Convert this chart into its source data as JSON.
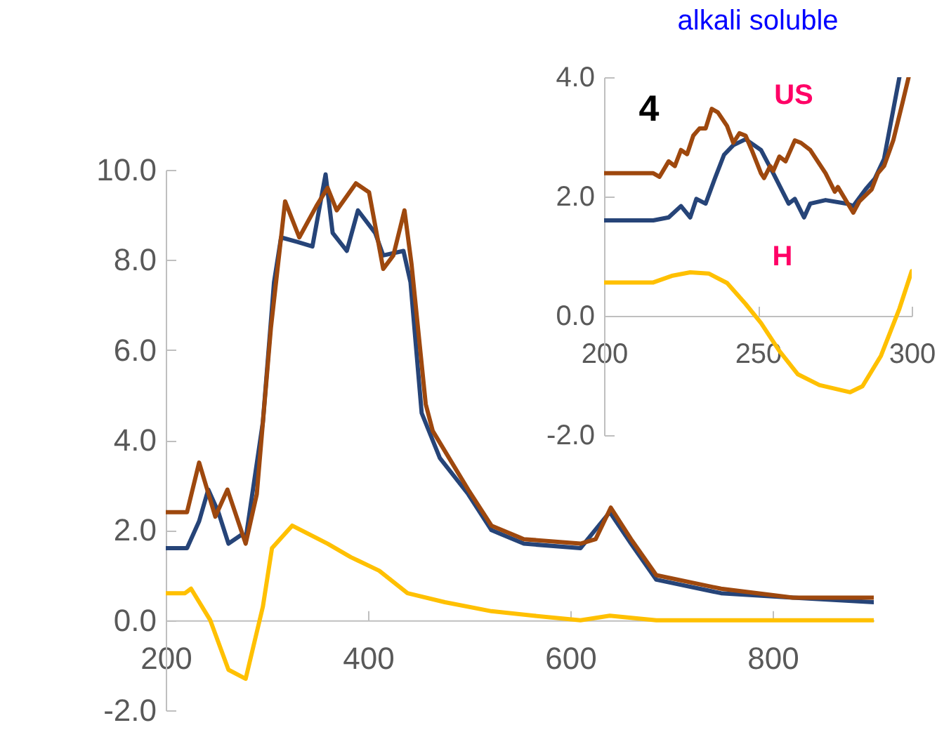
{
  "chart_data": [
    {
      "type": "line",
      "xlim": [
        200,
        900
      ],
      "xticks": [
        200,
        400,
        600,
        800
      ],
      "ylim": [
        -2,
        10
      ],
      "yticks": [
        {
          "value": -2,
          "label": "-2.0"
        },
        {
          "value": 0,
          "label": "0.0"
        },
        {
          "value": 2,
          "label": "2.0"
        },
        {
          "value": 4,
          "label": "4.0"
        },
        {
          "value": 6,
          "label": "6.0"
        },
        {
          "value": 8,
          "label": "8.0"
        },
        {
          "value": 10,
          "label": "10.0"
        }
      ],
      "series": [
        {
          "color": "#264478",
          "x": [
            200,
            221,
            233,
            242,
            252,
            262,
            275,
            279,
            296,
            307,
            314,
            330,
            345,
            358,
            365,
            379,
            390,
            407,
            415,
            435,
            442,
            453,
            471,
            499,
            522,
            554,
            610,
            639,
            660,
            685,
            749,
            820,
            900
          ],
          "values": [
            1.6,
            1.6,
            2.2,
            2.9,
            2.4,
            1.7,
            1.9,
            1.8,
            4.4,
            7.5,
            8.5,
            8.4,
            8.3,
            9.9,
            8.6,
            8.2,
            9.1,
            8.6,
            8.1,
            8.2,
            7.5,
            4.6,
            3.6,
            2.8,
            2.0,
            1.7,
            1.6,
            2.4,
            1.7,
            0.9,
            0.6,
            0.5,
            0.4
          ]
        },
        {
          "color": "#9e480e",
          "x": [
            200,
            221,
            233,
            249,
            261,
            279,
            290,
            304,
            318,
            332,
            349,
            360,
            369,
            388,
            401,
            415,
            425,
            436,
            443,
            457,
            464,
            499,
            522,
            554,
            610,
            625,
            640,
            660,
            685,
            749,
            820,
            900
          ],
          "values": [
            2.4,
            2.4,
            3.5,
            2.3,
            2.9,
            1.7,
            2.8,
            6.5,
            9.3,
            8.5,
            9.2,
            9.6,
            9.1,
            9.7,
            9.5,
            7.8,
            8.1,
            9.1,
            7.9,
            4.8,
            4.2,
            2.9,
            2.1,
            1.8,
            1.7,
            1.8,
            2.5,
            1.8,
            1.0,
            0.7,
            0.5,
            0.5
          ]
        },
        {
          "color": "#ffc000",
          "x": [
            200,
            219,
            225,
            244,
            262,
            279,
            296,
            305,
            325,
            360,
            383,
            411,
            439,
            476,
            522,
            564,
            610,
            639,
            685,
            900
          ],
          "values": [
            0.6,
            0.6,
            0.7,
            0.0,
            -1.1,
            -1.3,
            0.3,
            1.6,
            2.1,
            1.7,
            1.4,
            1.1,
            0.6,
            0.4,
            0.2,
            0.1,
            0.0,
            0.1,
            0.0,
            0.0
          ]
        }
      ]
    },
    {
      "type": "line",
      "title": "alkali soluble",
      "annotations": [
        "4",
        "US",
        "H"
      ],
      "xlim": [
        200,
        300
      ],
      "xticks": [
        200,
        250,
        300
      ],
      "ylim": [
        -2,
        4
      ],
      "yticks": [
        {
          "value": -2,
          "label": "-2.0"
        },
        {
          "value": 0,
          "label": "0.0"
        },
        {
          "value": 2,
          "label": "2.0"
        },
        {
          "value": 4,
          "label": "4.0"
        }
      ],
      "series": [
        {
          "color": "#264478",
          "x": [
            200,
            216,
            221,
            225,
            228,
            230,
            233,
            236,
            239,
            242,
            246,
            251,
            255,
            260,
            262,
            265,
            267,
            272,
            279,
            281,
            285,
            288,
            291,
            293,
            296
          ],
          "values": [
            1.6,
            1.6,
            1.65,
            1.84,
            1.65,
            1.96,
            1.88,
            2.3,
            2.7,
            2.86,
            2.96,
            2.78,
            2.39,
            1.88,
            1.96,
            1.65,
            1.88,
            1.94,
            1.88,
            1.84,
            2.12,
            2.3,
            2.63,
            3.18,
            4.0
          ]
        },
        {
          "color": "#9e480e",
          "x": [
            200,
            216,
            218,
            221,
            223,
            225,
            227,
            229,
            231,
            233,
            235,
            237,
            240,
            242,
            244,
            246,
            248,
            251,
            252,
            254,
            255,
            257,
            259,
            262,
            264,
            267,
            272,
            275,
            276,
            281,
            283,
            287,
            289,
            291,
            294,
            297,
            299
          ],
          "values": [
            2.39,
            2.39,
            2.33,
            2.59,
            2.51,
            2.78,
            2.71,
            3.02,
            3.14,
            3.14,
            3.47,
            3.41,
            3.18,
            2.9,
            3.06,
            3.02,
            2.78,
            2.39,
            2.31,
            2.51,
            2.43,
            2.67,
            2.59,
            2.94,
            2.9,
            2.78,
            2.39,
            2.08,
            2.16,
            1.73,
            1.92,
            2.12,
            2.39,
            2.51,
            2.94,
            3.57,
            4.0
          ]
        },
        {
          "color": "#ffc000",
          "x": [
            200,
            216,
            222,
            228,
            234,
            240,
            246,
            251,
            257,
            263,
            270,
            280,
            284,
            290,
            296,
            300
          ],
          "values": [
            0.56,
            0.56,
            0.67,
            0.73,
            0.71,
            0.55,
            0.2,
            -0.12,
            -0.59,
            -0.98,
            -1.16,
            -1.28,
            -1.18,
            -0.67,
            0.12,
            0.75
          ]
        }
      ]
    }
  ]
}
